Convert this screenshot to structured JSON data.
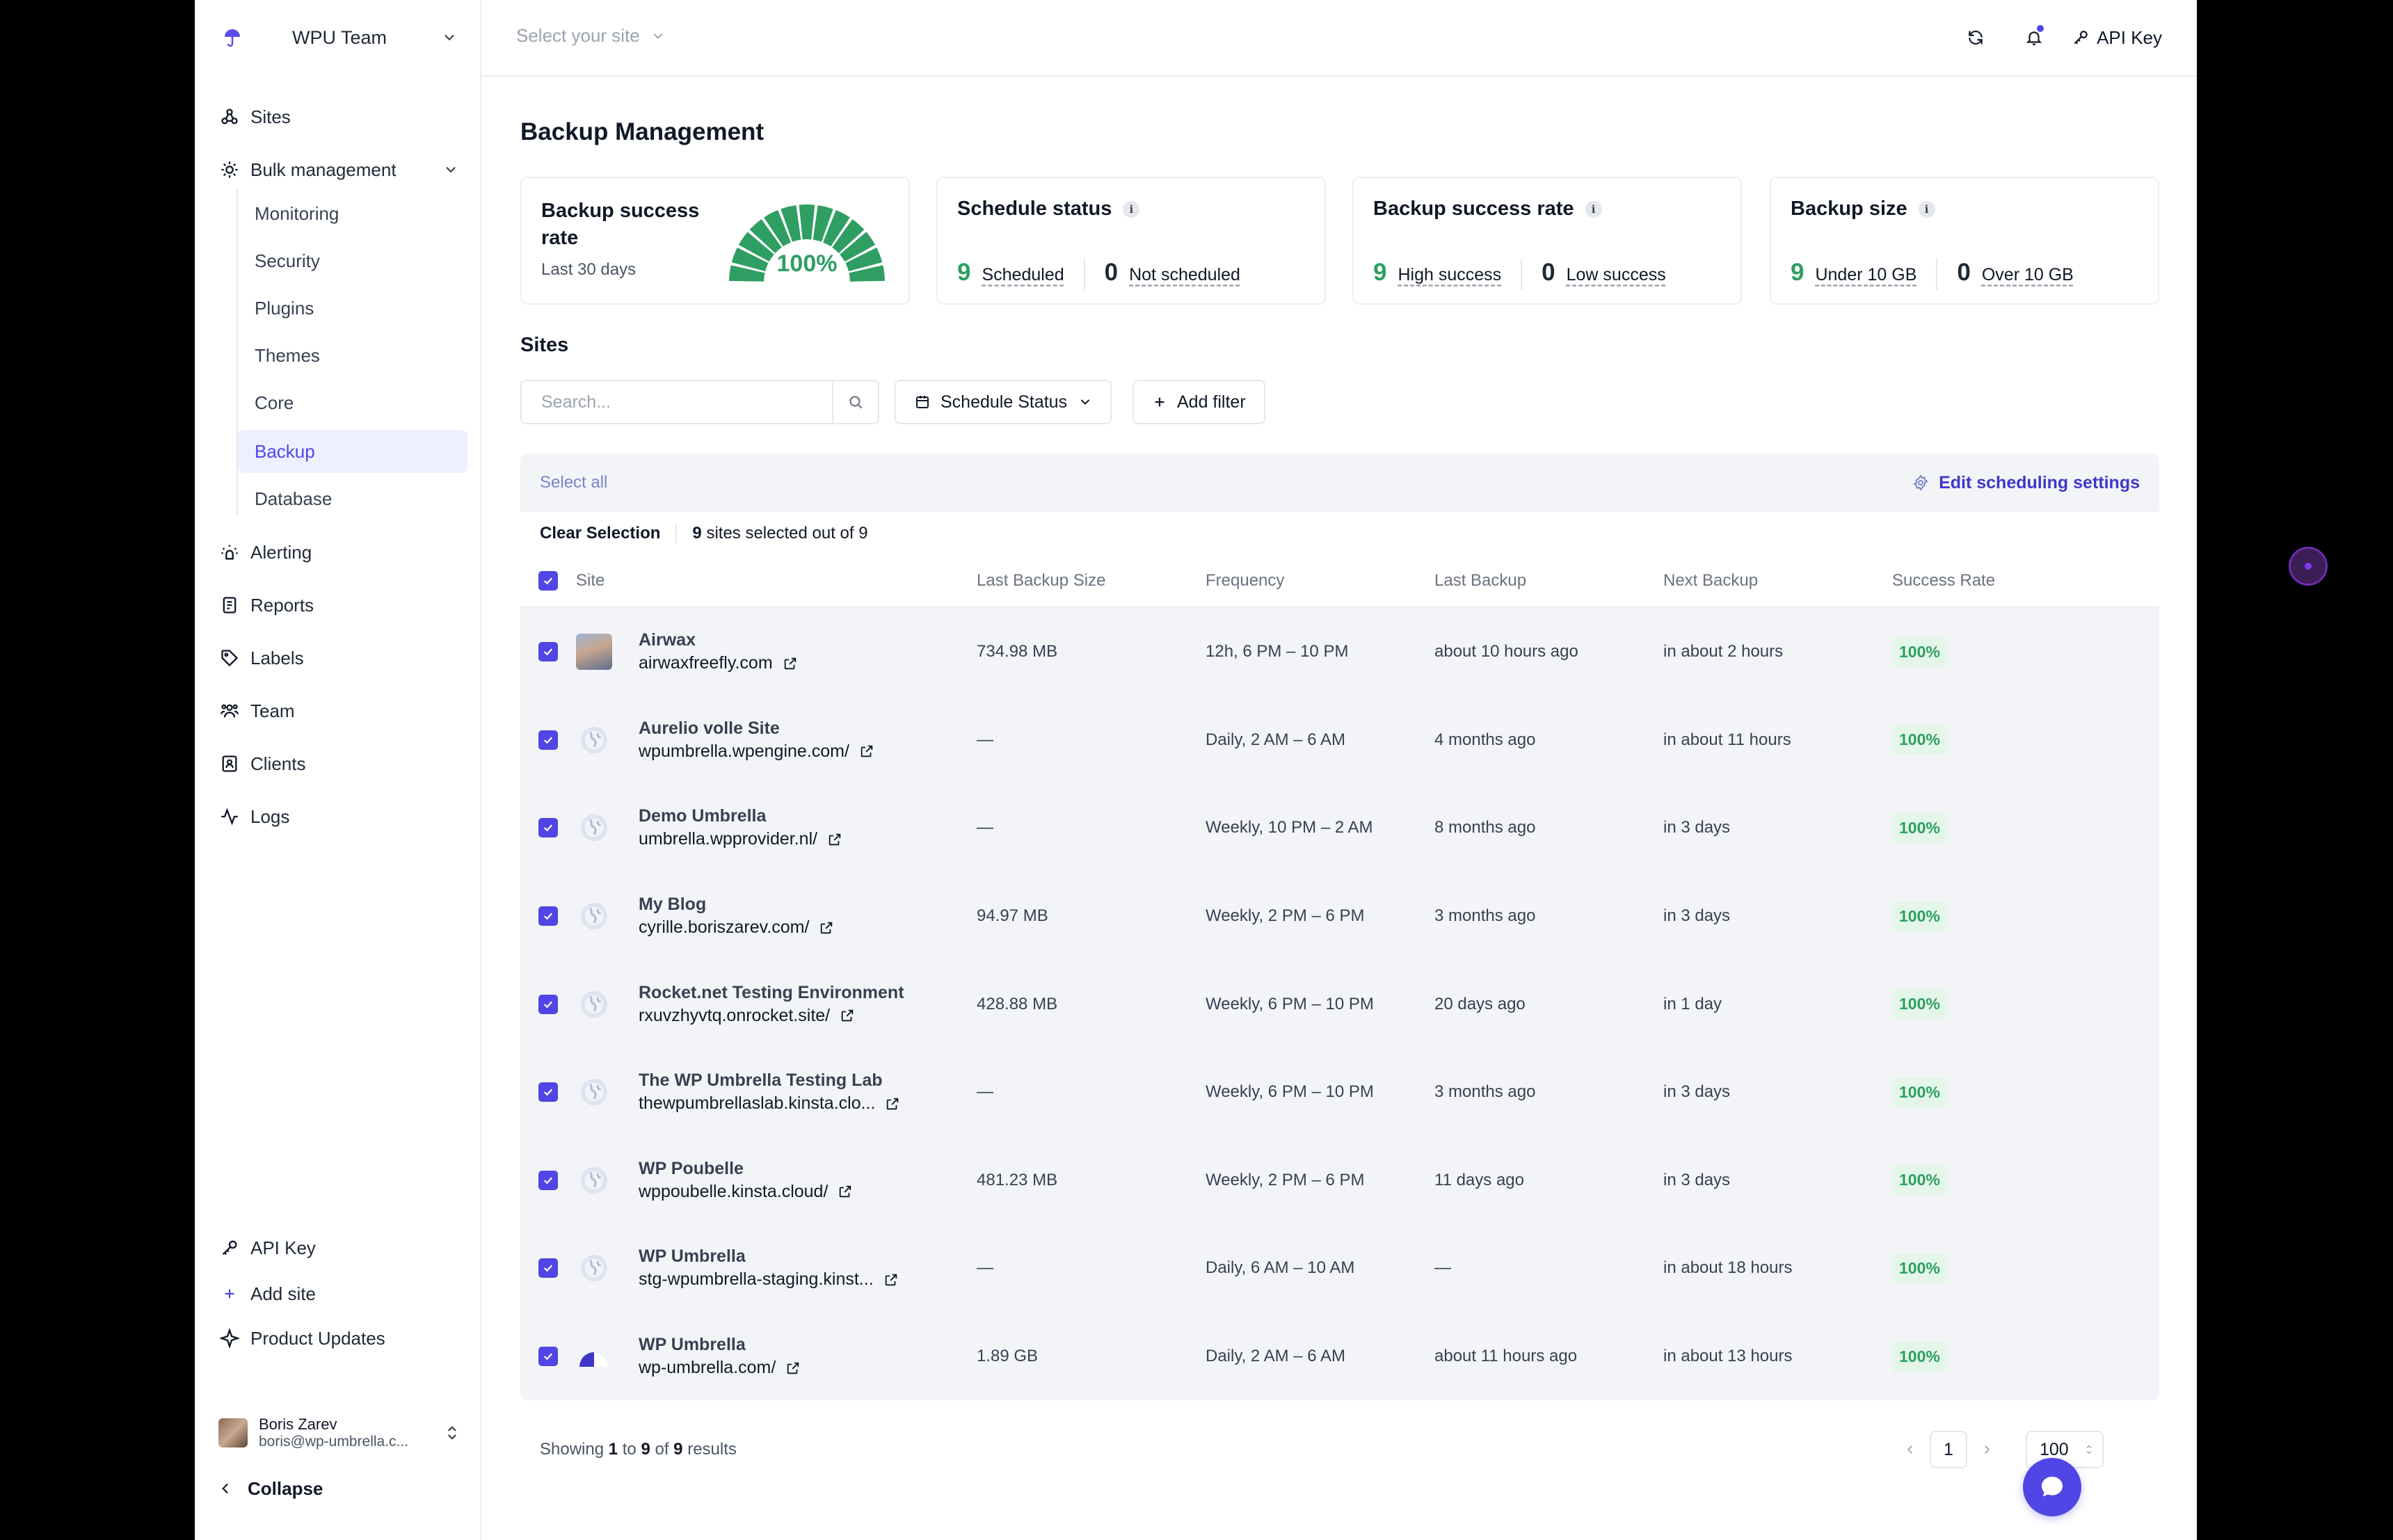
{
  "sidebar": {
    "team_name": "WPU Team",
    "nav": [
      {
        "label": "Sites",
        "icon": "sites-icon"
      },
      {
        "label": "Bulk management",
        "icon": "bulk-icon"
      }
    ],
    "sub_items": [
      "Monitoring",
      "Security",
      "Plugins",
      "Themes",
      "Core",
      "Backup",
      "Database"
    ],
    "active_sub": "Backup",
    "nav2": [
      {
        "label": "Alerting",
        "icon": "alert-icon"
      },
      {
        "label": "Reports",
        "icon": "reports-icon"
      },
      {
        "label": "Labels",
        "icon": "tag-icon"
      },
      {
        "label": "Team",
        "icon": "team-icon"
      },
      {
        "label": "Clients",
        "icon": "clients-icon"
      },
      {
        "label": "Logs",
        "icon": "logs-icon"
      }
    ],
    "bottom": [
      {
        "label": "API Key",
        "icon": "key-icon"
      },
      {
        "label": "Add site",
        "icon": "plus-icon"
      },
      {
        "label": "Product Updates",
        "icon": "sparkle-icon"
      }
    ],
    "user": {
      "name": "Boris Zarev",
      "email": "boris@wp-umbrella.c..."
    },
    "collapse_label": "Collapse"
  },
  "topbar": {
    "site_select_placeholder": "Select your site",
    "api_key_label": "API Key"
  },
  "page": {
    "title": "Backup Management",
    "cards": {
      "rate": {
        "title": "Backup success rate",
        "subtitle": "Last 30 days",
        "gauge_value": "100%",
        "gauge_fraction": 1.0
      },
      "schedule": {
        "title": "Schedule status",
        "a_num": "9",
        "a_label": "Scheduled",
        "b_num": "0",
        "b_label": "Not scheduled"
      },
      "success": {
        "title": "Backup success rate",
        "a_num": "9",
        "a_label": "High success",
        "b_num": "0",
        "b_label": "Low success"
      },
      "size": {
        "title": "Backup size",
        "a_num": "9",
        "a_label": "Under 10 GB",
        "b_num": "0",
        "b_label": "Over 10 GB"
      }
    },
    "sites_title": "Sites",
    "search_placeholder": "Search...",
    "schedule_filter": "Schedule Status",
    "add_filter": "Add filter",
    "select_all": "Select all",
    "edit_scheduling": "Edit scheduling settings",
    "clear_selection": "Clear Selection",
    "selected": {
      "count": "9",
      "mid": "sites selected out of",
      "total": "9"
    },
    "columns": {
      "site": "Site",
      "size": "Last Backup Size",
      "freq": "Frequency",
      "last": "Last Backup",
      "next": "Next Backup",
      "rate": "Success Rate"
    },
    "rows": [
      {
        "name": "Airwax",
        "url": "airwaxfreefly.com",
        "size": "734.98 MB",
        "freq": "12h, 6 PM – 10 PM",
        "last": "about 10 hours ago",
        "next": "in about 2 hours",
        "rate": "100%",
        "icon": "photo"
      },
      {
        "name": "Aurelio volle Site",
        "url": "wpumbrella.wpengine.com/",
        "size": "—",
        "freq": "Daily, 2 AM – 6 AM",
        "last": "4 months ago",
        "next": "in about 11 hours",
        "rate": "100%",
        "icon": "globe"
      },
      {
        "name": "Demo Umbrella",
        "url": "umbrella.wpprovider.nl/",
        "size": "—",
        "freq": "Weekly, 10 PM – 2 AM",
        "last": "8 months ago",
        "next": "in 3 days",
        "rate": "100%",
        "icon": "globe"
      },
      {
        "name": "My Blog",
        "url": "cyrille.boriszarev.com/",
        "size": "94.97 MB",
        "freq": "Weekly, 2 PM – 6 PM",
        "last": "3 months ago",
        "next": "in 3 days",
        "rate": "100%",
        "icon": "globe"
      },
      {
        "name": "Rocket.net Testing Environment",
        "url": "rxuvzhyvtq.onrocket.site/",
        "size": "428.88 MB",
        "freq": "Weekly, 6 PM – 10 PM",
        "last": "20 days ago",
        "next": "in 1 day",
        "rate": "100%",
        "icon": "globe"
      },
      {
        "name": "The WP Umbrella Testing Lab",
        "url": "thewpumbrellaslab.kinsta.clo...",
        "size": "—",
        "freq": "Weekly, 6 PM – 10 PM",
        "last": "3 months ago",
        "next": "in 3 days",
        "rate": "100%",
        "icon": "globe"
      },
      {
        "name": "WP Poubelle",
        "url": "wppoubelle.kinsta.cloud/",
        "size": "481.23 MB",
        "freq": "Weekly, 2 PM – 6 PM",
        "last": "11 days ago",
        "next": "in 3 days",
        "rate": "100%",
        "icon": "globe"
      },
      {
        "name": "WP Umbrella",
        "url": "stg-wpumbrella-staging.kinst...",
        "size": "—",
        "freq": "Daily, 6 AM – 10 AM",
        "last": "—",
        "next": "in about 18 hours",
        "rate": "100%",
        "icon": "globe"
      },
      {
        "name": "WP Umbrella",
        "url": "wp-umbrella.com/",
        "size": "1.89 GB",
        "freq": "Daily, 2 AM – 6 AM",
        "last": "about 11 hours ago",
        "next": "in about 13 hours",
        "rate": "100%",
        "icon": "umbrella"
      }
    ],
    "footer": {
      "showing": "Showing",
      "from": "1",
      "to_word": "to",
      "to": "9",
      "of_word": "of",
      "total": "9",
      "results": "results",
      "page": "1",
      "per_page": "100"
    }
  },
  "colors": {
    "accent": "#4f46e5",
    "success": "#2f9e63"
  }
}
